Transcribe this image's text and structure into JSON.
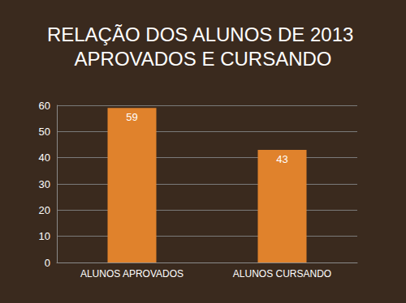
{
  "chart_data": {
    "type": "bar",
    "title": "RELAÇÃO DOS ALUNOS DE 2013 APROVADOS E CURSANDO",
    "categories": [
      "ALUNOS APROVADOS",
      "ALUNOS CURSANDO"
    ],
    "values": [
      59,
      43
    ],
    "color": "#e0822c",
    "ylim": [
      0,
      60
    ],
    "yticks": [
      0,
      10,
      20,
      30,
      40,
      50,
      60
    ],
    "grid": true,
    "data_labels": true
  }
}
